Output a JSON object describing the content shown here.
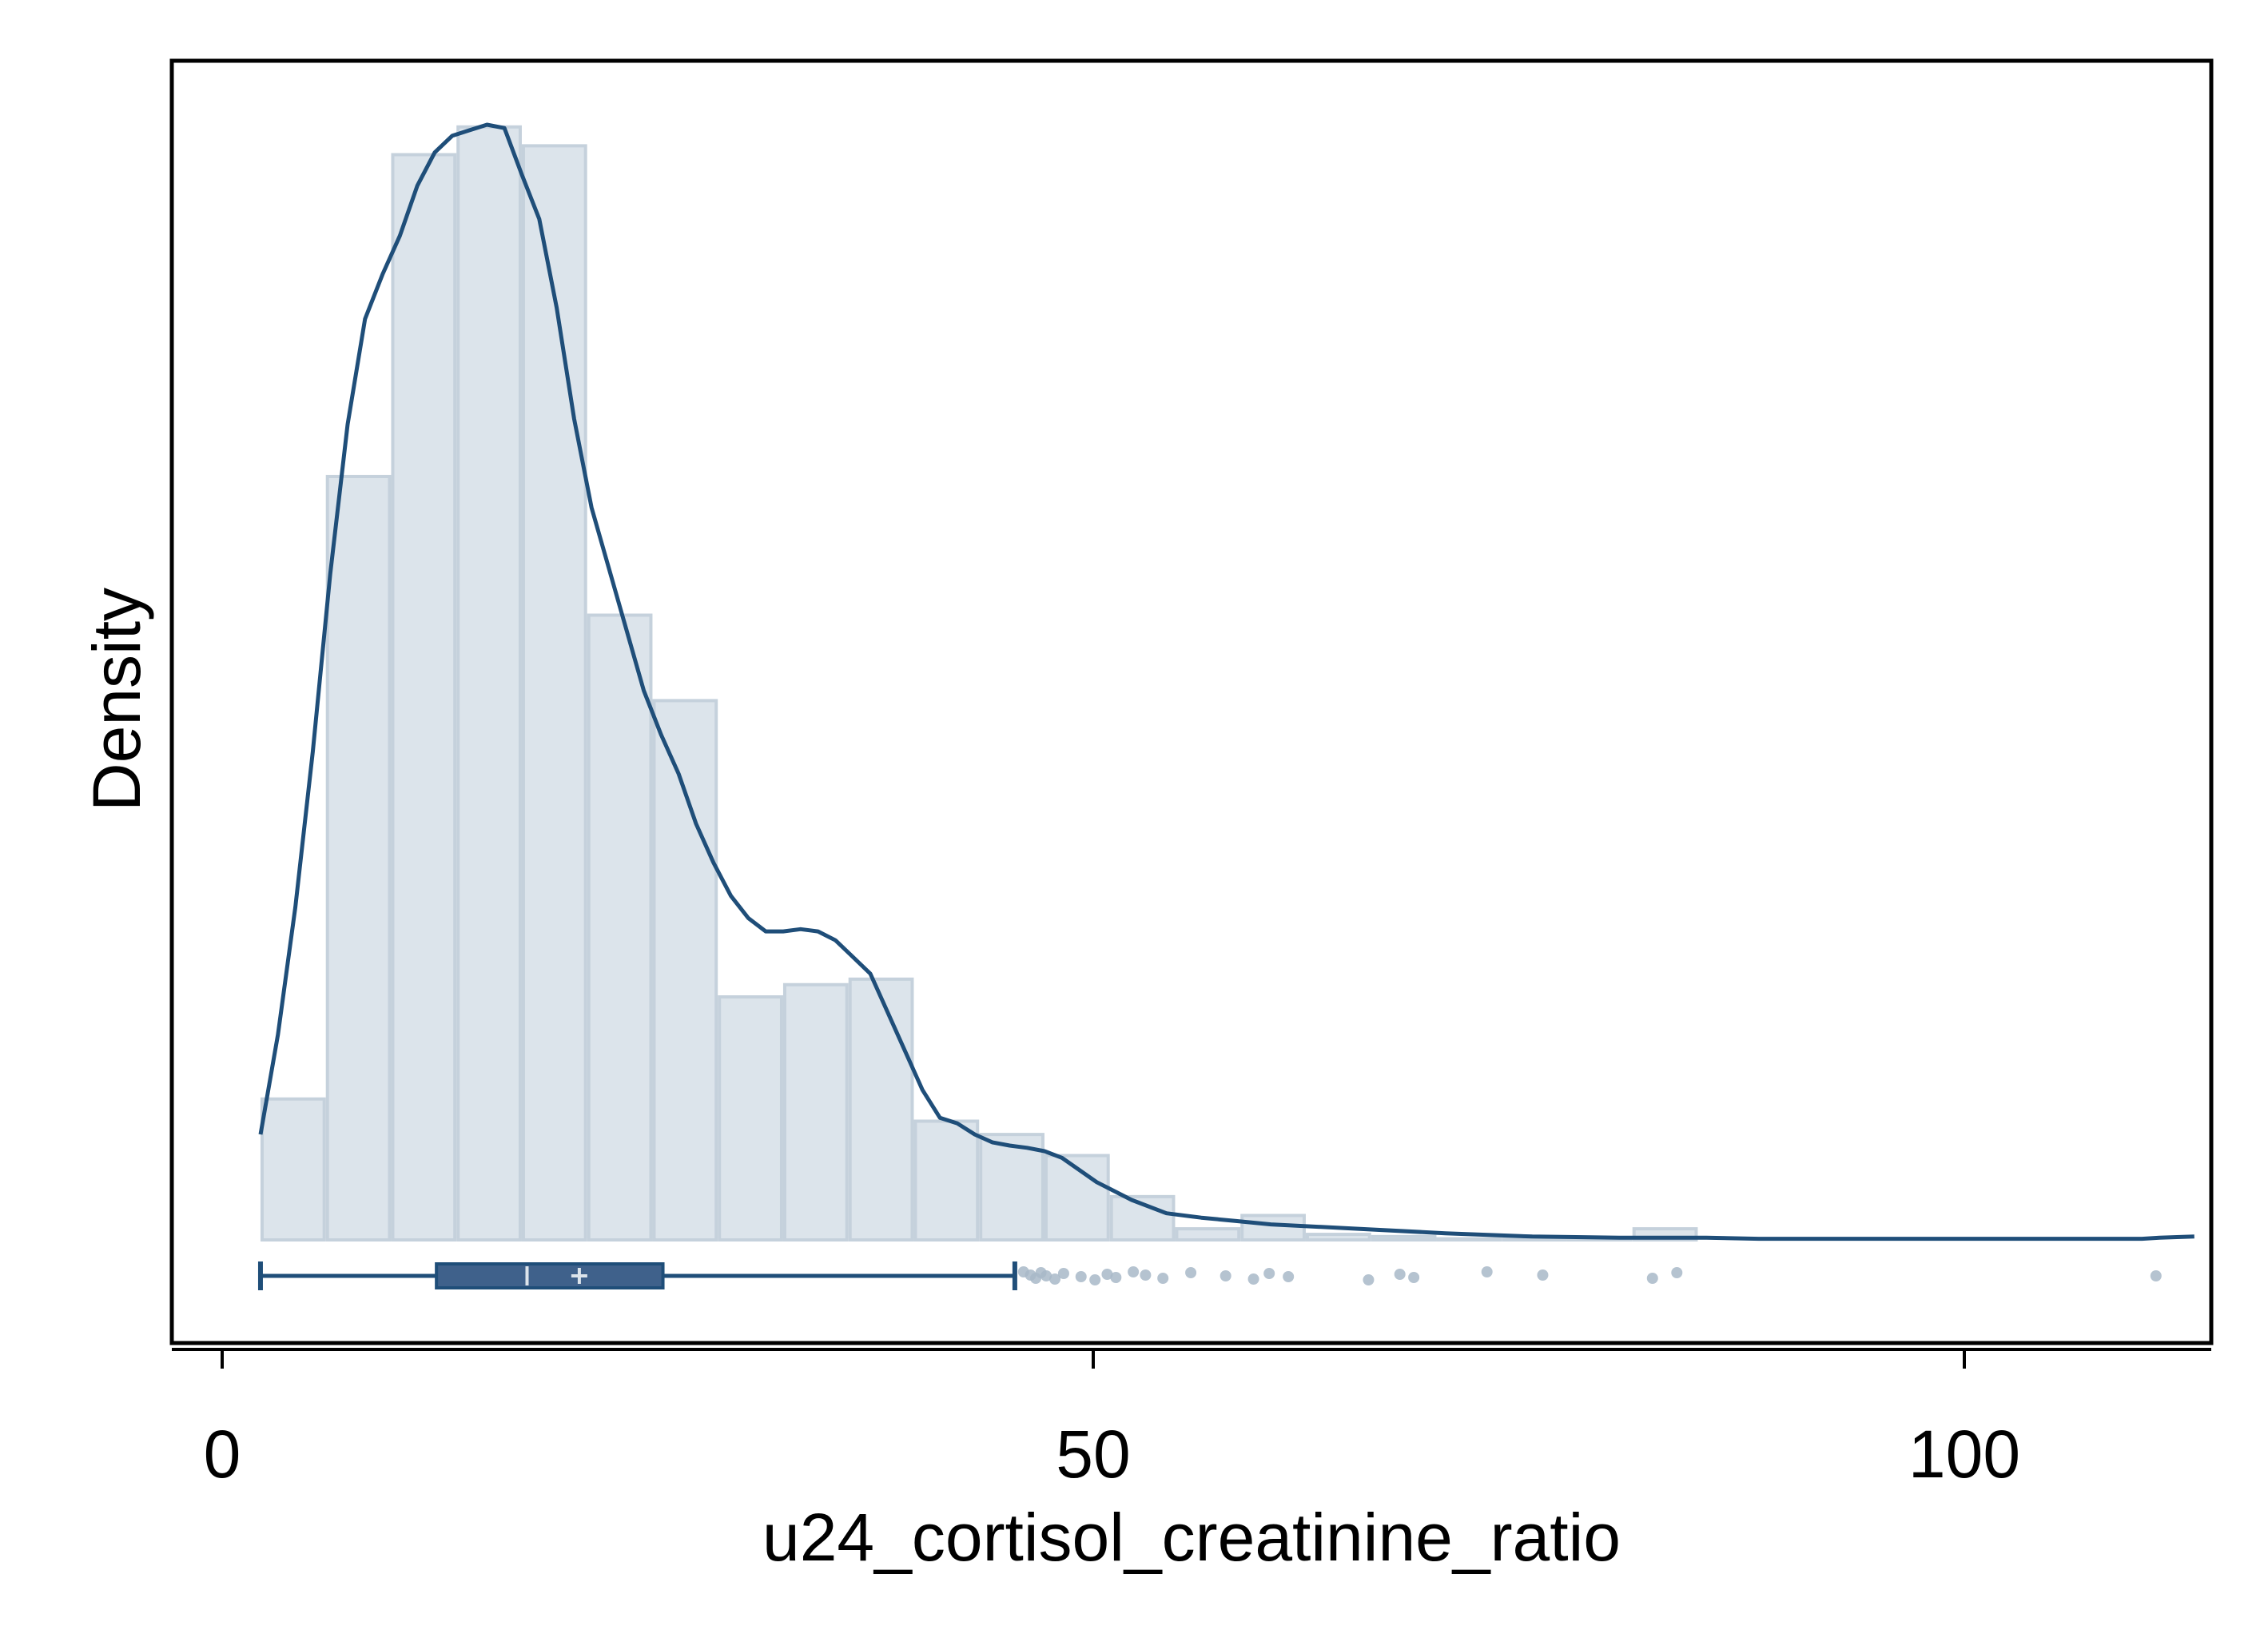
{
  "chart_data": {
    "type": "histogram",
    "xlabel": "u24_cortisol_creatinine_ratio",
    "ylabel": "Density",
    "xlim": [
      0,
      114
    ],
    "x_ticks": [
      0,
      50,
      100
    ],
    "x_tick_labels": [
      "0",
      "50",
      "100"
    ],
    "y_ticks": [],
    "grid": false,
    "legend": "none",
    "bin_width": 3.75,
    "histogram": {
      "bin_starts": [
        2.2,
        5.95,
        9.7,
        13.45,
        17.2,
        20.95,
        24.7,
        28.45,
        32.2,
        35.95,
        39.7,
        43.45,
        47.2,
        50.95,
        54.7,
        58.45,
        62.2,
        65.95,
        69.7,
        73.45,
        77.2,
        80.95
      ],
      "density": [
        0.0127,
        0.0688,
        0.0978,
        0.1003,
        0.0986,
        0.0563,
        0.0486,
        0.0219,
        0.023,
        0.0235,
        0.0107,
        0.0095,
        0.0076,
        0.0039,
        0.001,
        0.0022,
        0.0005,
        0.0003,
        0.0001,
        0.0001,
        0.0001,
        0.001
      ]
    },
    "density_curve": {
      "x": [
        2.2,
        3.2,
        4.2,
        5.2,
        6.2,
        7.2,
        8.2,
        9.2,
        10.2,
        11.2,
        12.2,
        13.2,
        14.2,
        15.2,
        16.2,
        17.2,
        18.2,
        19.2,
        20.2,
        21.2,
        22.2,
        23.2,
        24.2,
        25.2,
        26.2,
        27.2,
        28.2,
        29.2,
        30.2,
        31.2,
        32.2,
        33.2,
        34.2,
        35.2,
        36.2,
        37.2,
        38.2,
        39.2,
        40.2,
        41.2,
        42.2,
        43.2,
        44.2,
        45.2,
        46.2,
        47.2,
        48.2,
        50.2,
        52.2,
        54.2,
        56.2,
        58.2,
        60.2,
        65.2,
        70.2,
        75.2,
        80.2,
        85.2,
        88.2,
        90.2,
        95.2,
        100.2,
        105.2,
        110.2,
        111.2,
        113.2
      ],
      "density": [
        0.0095,
        0.0185,
        0.03,
        0.044,
        0.06,
        0.0735,
        0.083,
        0.087,
        0.0905,
        0.095,
        0.098,
        0.0995,
        0.1,
        0.1005,
        0.1002,
        0.096,
        0.092,
        0.084,
        0.074,
        0.066,
        0.0605,
        0.055,
        0.0495,
        0.0455,
        0.042,
        0.0375,
        0.034,
        0.031,
        0.029,
        0.0278,
        0.0278,
        0.028,
        0.0278,
        0.027,
        0.0255,
        0.024,
        0.0205,
        0.017,
        0.0135,
        0.011,
        0.0105,
        0.0095,
        0.0088,
        0.0085,
        0.0083,
        0.008,
        0.0074,
        0.0052,
        0.0036,
        0.0024,
        0.002,
        0.0017,
        0.0014,
        0.001,
        0.0006,
        0.0003,
        0.0002,
        0.0002,
        0.0001,
        0.0001,
        0.0001,
        0.0001,
        0.0001,
        0.0001,
        0.0002,
        0.0003
      ]
    },
    "boxplot": {
      "whisker_low": 2.2,
      "q1": 12.3,
      "median": 17.5,
      "mean": 20.5,
      "q3": 25.3,
      "whisker_high": 45.5,
      "outliers": [
        46.0,
        46.4,
        46.7,
        47.0,
        47.3,
        47.8,
        48.3,
        49.3,
        50.1,
        50.8,
        51.3,
        52.3,
        53.0,
        54.0,
        55.6,
        57.6,
        59.2,
        60.1,
        61.2,
        65.8,
        67.6,
        68.4,
        72.6,
        75.8,
        82.1,
        83.5,
        111.0
      ]
    },
    "colors": {
      "bar_fill": "#dce4eb",
      "bar_edge": "#c5d1dc",
      "curve": "#1f4e79",
      "box_fill": "#3f618b",
      "box_edge": "#1f4e79",
      "median_mark": "#dce4eb",
      "outlier": "#a8b8c8",
      "axis": "#000000"
    }
  }
}
